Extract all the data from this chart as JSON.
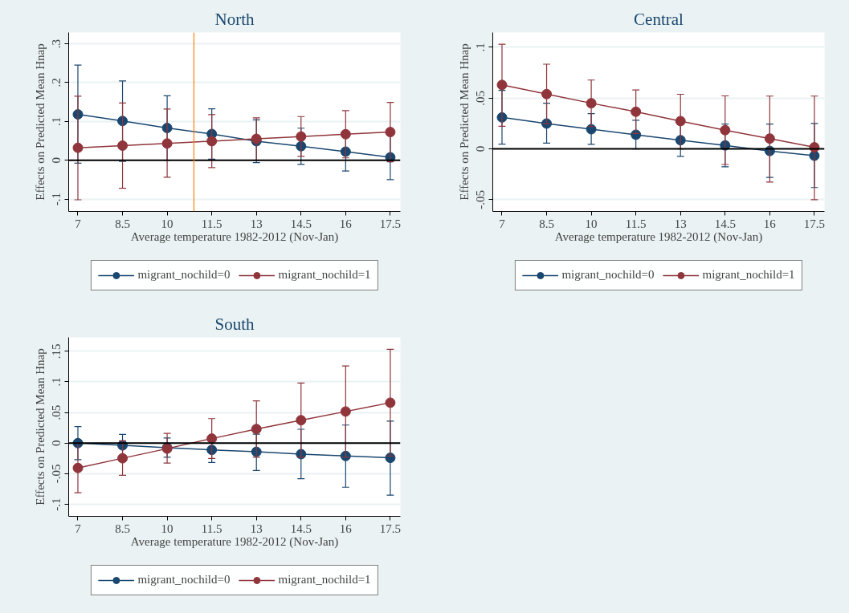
{
  "chart_data": [
    {
      "type": "line",
      "title": "North",
      "xlabel": "Average temperature 1982-2012 (Nov-Jan)",
      "ylabel": "Effects on Predicted Mean Hnap",
      "x": [
        7,
        8.5,
        10,
        11.5,
        13,
        14.5,
        16,
        17.5
      ],
      "xlim": [
        6.69,
        17.84
      ],
      "xticks": [
        7,
        8.5,
        10,
        11.5,
        13,
        14.5,
        16,
        17.5
      ],
      "ylim": [
        -0.132,
        0.329
      ],
      "yticks": [
        {
          "value": -0.1,
          "label": "-.1"
        },
        {
          "value": 0,
          "label": "0"
        },
        {
          "value": 0.1,
          "label": ".1"
        },
        {
          "value": 0.2,
          "label": ".2"
        },
        {
          "value": 0.3,
          "label": ".3"
        }
      ],
      "grid": "y",
      "legend": "bottom",
      "marker": "circle",
      "ref_lines": [
        {
          "axis": "y",
          "value": 0,
          "color": "#000000"
        },
        {
          "axis": "x",
          "value": 10.9,
          "color": "#ff7f0e"
        }
      ],
      "series": [
        {
          "name": "migrant_nochild=0",
          "color": "#1a476f",
          "values": [
            0.118,
            0.101,
            0.083,
            0.0675,
            0.049,
            0.036,
            0.022,
            0.0075
          ],
          "errors": [
            [
              -0.0075,
              0.245
            ],
            [
              -0.003,
              0.204
            ],
            [
              0.0,
              0.166
            ],
            [
              0.0025,
              0.1325
            ],
            [
              -0.006,
              0.104
            ],
            [
              -0.011,
              0.0825
            ],
            [
              -0.028,
              0.072
            ],
            [
              -0.05,
              0.065
            ]
          ]
        },
        {
          "name": "migrant_nochild=1",
          "color": "#90353b",
          "values": [
            0.032,
            0.0375,
            0.043,
            0.049,
            0.055,
            0.061,
            0.067,
            0.0725
          ],
          "errors": [
            [
              -0.102,
              0.165
            ],
            [
              -0.0725,
              0.1475
            ],
            [
              -0.044,
              0.132
            ],
            [
              -0.019,
              0.1175
            ],
            [
              0.0,
              0.109
            ],
            [
              0.01,
              0.1125
            ],
            [
              0.006,
              0.1275
            ],
            [
              -0.004,
              0.149
            ]
          ]
        }
      ]
    },
    {
      "type": "line",
      "title": "Central",
      "xlabel": "Average temperature 1982-2012 (Nov-Jan)",
      "ylabel": "Effects on Predicted Mean Hnap",
      "x": [
        7,
        8.5,
        10,
        11.5,
        13,
        14.5,
        16,
        17.5
      ],
      "xlim": [
        6.69,
        17.84
      ],
      "xticks": [
        7,
        8.5,
        10,
        11.5,
        13,
        14.5,
        16,
        17.5
      ],
      "ylim": [
        -0.0615,
        0.1146
      ],
      "yticks": [
        {
          "value": -0.05,
          "label": "-.05"
        },
        {
          "value": 0,
          "label": "0"
        },
        {
          "value": 0.05,
          "label": ".05"
        },
        {
          "value": 0.1,
          "label": ".1"
        }
      ],
      "grid": "y",
      "legend": "bottom",
      "marker": "circle",
      "ref_lines": [
        {
          "axis": "y",
          "value": 0,
          "color": "#000000"
        }
      ],
      "series": [
        {
          "name": "migrant_nochild=0",
          "color": "#1a476f",
          "values": [
            0.031,
            0.025,
            0.0194,
            0.014,
            0.0086,
            0.0035,
            -0.002,
            -0.0067
          ],
          "errors": [
            [
              0.0048,
              0.0576
            ],
            [
              0.0057,
              0.045
            ],
            [
              0.0045,
              0.0347
            ],
            [
              0.0,
              0.0283
            ],
            [
              -0.0073,
              0.0245
            ],
            [
              -0.0175,
              0.0245
            ],
            [
              -0.028,
              0.0245
            ],
            [
              -0.038,
              0.025
            ]
          ]
        },
        {
          "name": "migrant_nochild=1",
          "color": "#90353b",
          "values": [
            0.063,
            0.054,
            0.045,
            0.0366,
            0.0274,
            0.0185,
            0.0102,
            0.0016
          ],
          "errors": [
            [
              0.0223,
              0.103
            ],
            [
              0.0246,
              0.0834
            ],
            [
              0.022,
              0.0678
            ],
            [
              0.0152,
              0.058
            ],
            [
              0.0,
              0.0538
            ],
            [
              -0.0153,
              0.0522
            ],
            [
              -0.0325,
              0.052
            ],
            [
              -0.05,
              0.052
            ]
          ]
        }
      ]
    },
    {
      "type": "line",
      "title": "South",
      "xlabel": "Average temperature 1982-2012 (Nov-Jan)",
      "ylabel": "Effects on Predicted Mean Hnap",
      "x": [
        7,
        8.5,
        10,
        11.5,
        13,
        14.5,
        16,
        17.5
      ],
      "xlim": [
        6.69,
        17.84
      ],
      "xticks": [
        7,
        8.5,
        10,
        11.5,
        13,
        14.5,
        16,
        17.5
      ],
      "ylim": [
        -0.1195,
        0.1726
      ],
      "yticks": [
        {
          "value": -0.1,
          "label": "-.1"
        },
        {
          "value": -0.05,
          "label": "-.05"
        },
        {
          "value": 0,
          "label": "0"
        },
        {
          "value": 0.05,
          "label": ".05"
        },
        {
          "value": 0.1,
          "label": ".1"
        },
        {
          "value": 0.15,
          "label": ".15"
        }
      ],
      "grid": "y",
      "legend": "bottom",
      "marker": "circle",
      "ref_lines": [
        {
          "axis": "y",
          "value": 0,
          "color": "#000000"
        }
      ],
      "series": [
        {
          "name": "migrant_nochild=0",
          "color": "#1a476f",
          "values": [
            0.0,
            -0.0037,
            -0.0074,
            -0.011,
            -0.0142,
            -0.018,
            -0.021,
            -0.024
          ],
          "errors": [
            [
              -0.027,
              0.027
            ],
            [
              -0.0216,
              0.0142
            ],
            [
              -0.023,
              0.0084
            ],
            [
              -0.0316,
              0.0096
            ],
            [
              -0.0447,
              0.0147
            ],
            [
              -0.058,
              0.0226
            ],
            [
              -0.072,
              0.0295
            ],
            [
              -0.085,
              0.036
            ]
          ]
        },
        {
          "name": "migrant_nochild=1",
          "color": "#90353b",
          "values": [
            -0.0405,
            -0.0247,
            -0.009,
            0.0074,
            0.023,
            0.0374,
            0.0516,
            0.066
          ],
          "errors": [
            [
              -0.081,
              0.0
            ],
            [
              -0.0526,
              0.0037
            ],
            [
              -0.0326,
              0.0158
            ],
            [
              -0.025,
              0.04
            ],
            [
              -0.023,
              0.069
            ],
            [
              -0.023,
              0.098
            ],
            [
              -0.023,
              0.126
            ],
            [
              -0.021,
              0.153
            ]
          ]
        }
      ]
    }
  ]
}
